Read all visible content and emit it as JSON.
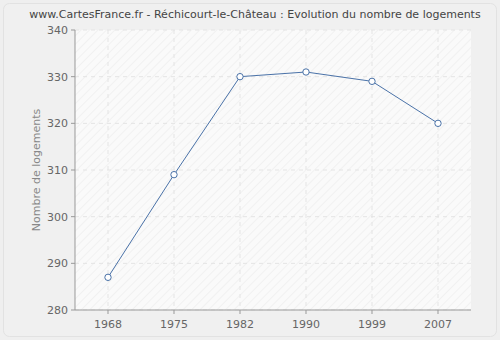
{
  "chart_data": {
    "type": "line",
    "title": "www.CartesFrance.fr - Réchicourt-le-Château : Evolution du nombre de logements",
    "y_label": "Nombre de logements",
    "categories": [
      "1968",
      "1975",
      "1982",
      "1990",
      "1999",
      "2007"
    ],
    "values": [
      287,
      309,
      330,
      331,
      329,
      320
    ],
    "color": "#4a72a8",
    "marker": "circle",
    "ylim": [
      280,
      340
    ],
    "yticks": [
      280,
      290,
      300,
      310,
      320,
      330,
      340
    ],
    "grid": true
  }
}
